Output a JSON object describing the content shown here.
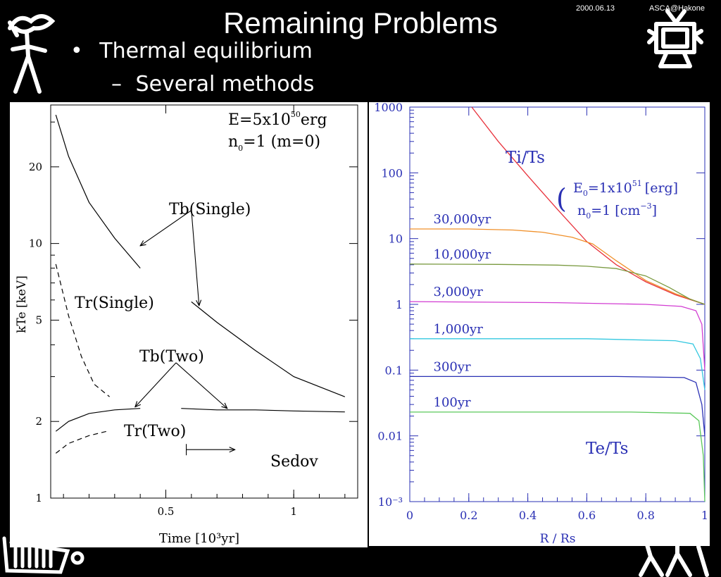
{
  "slide": {
    "title": "Remaining Problems",
    "date": "2000.06.13",
    "venue": "ASCA@Hakone",
    "bullets": [
      {
        "marker": "•",
        "text": "Thermal equilibrium"
      },
      {
        "marker": "–",
        "text": "Several methods"
      }
    ]
  },
  "chart_data": [
    {
      "type": "line",
      "xlabel": "Time [10³yr]",
      "ylabel": "kTe [keV]",
      "xlim": [
        0.05,
        1.25
      ],
      "ylim": [
        1,
        35
      ],
      "yscale": "log",
      "xticks": [
        "0.5",
        "1"
      ],
      "yticks": [
        "1",
        "2",
        "5",
        "10",
        "20"
      ],
      "annotations": {
        "energy": "E=5x10",
        "energy_exp": "50",
        "energy_unit": "erg",
        "density": "n",
        "density_sub": "0",
        "density_rest": "=1 (m=0)",
        "tb_single": "Tb(Single)",
        "tr_single": "Tr(Single)",
        "tb_two": "Tb(Two)",
        "tr_two": "Tr(Two)",
        "sedov": "Sedov"
      },
      "series": [
        {
          "name": "Tb(Single)",
          "style": "solid",
          "segments": [
            [
              [
                0.07,
                32
              ],
              [
                0.12,
                22
              ],
              [
                0.2,
                14.5
              ],
              [
                0.3,
                10.5
              ],
              [
                0.4,
                8
              ]
            ],
            [
              [
                0.6,
                5.9
              ],
              [
                0.7,
                4.9
              ],
              [
                0.85,
                3.8
              ],
              [
                1.0,
                3.0
              ],
              [
                1.2,
                2.5
              ]
            ]
          ]
        },
        {
          "name": "Tr(Single)",
          "style": "dashed",
          "segments": [
            [
              [
                0.07,
                8.3
              ],
              [
                0.12,
                5.2
              ],
              [
                0.17,
                3.6
              ],
              [
                0.22,
                2.8
              ],
              [
                0.28,
                2.5
              ]
            ]
          ]
        },
        {
          "name": "Tb(Two)",
          "style": "solid",
          "segments": [
            [
              [
                0.07,
                1.83
              ],
              [
                0.12,
                2.0
              ],
              [
                0.2,
                2.15
              ],
              [
                0.3,
                2.22
              ],
              [
                0.4,
                2.25
              ]
            ],
            [
              [
                0.56,
                2.25
              ],
              [
                0.7,
                2.22
              ],
              [
                0.85,
                2.22
              ],
              [
                1.0,
                2.2
              ],
              [
                1.2,
                2.18
              ]
            ]
          ]
        },
        {
          "name": "Tr(Two)",
          "style": "dashed",
          "segments": [
            [
              [
                0.07,
                1.5
              ],
              [
                0.12,
                1.64
              ],
              [
                0.2,
                1.76
              ],
              [
                0.27,
                1.83
              ]
            ]
          ]
        }
      ],
      "arrows": [
        {
          "from": [
            0.6,
            13.5
          ],
          "to": [
            0.4,
            9.8
          ]
        },
        {
          "from": [
            0.6,
            13.5
          ],
          "to": [
            0.63,
            5.7
          ]
        },
        {
          "from": [
            0.54,
            3.4
          ],
          "to": [
            0.38,
            2.28
          ]
        },
        {
          "from": [
            0.54,
            3.4
          ],
          "to": [
            0.74,
            2.25
          ]
        },
        {
          "from": [
            0.58,
            1.55
          ],
          "to": [
            0.77,
            1.55
          ]
        }
      ]
    },
    {
      "type": "line",
      "xlabel": "R / Rs",
      "ylabel": "",
      "xlim": [
        0,
        1
      ],
      "ylim": [
        0.001,
        1000
      ],
      "yscale": "log",
      "xticks": [
        "0",
        "0.2",
        "0.4",
        "0.6",
        "0.8",
        "1"
      ],
      "yticks": [
        "10⁻³",
        "0.01",
        "0.1",
        "1",
        "10",
        "100",
        "1000"
      ],
      "annotations": {
        "ti_ts": "Ti/Ts",
        "te_ts": "Te/Ts",
        "e0": "E",
        "e0_sub": "0",
        "e0_rest": "=1x10",
        "e0_exp": "51",
        "e0_unit": "[erg]",
        "n0": "n",
        "n0_sub": "0",
        "n0_rest": "=1 [cm",
        "n0_exp": "−3",
        "n0_close": "]",
        "paren": "("
      },
      "series": [
        {
          "name": "Ti/Ts",
          "color": "#e8323c",
          "points": [
            [
              0.21,
              1000
            ],
            [
              0.3,
              300
            ],
            [
              0.4,
              90
            ],
            [
              0.5,
              28
            ],
            [
              0.6,
              9
            ],
            [
              0.7,
              4
            ],
            [
              0.8,
              2.2
            ],
            [
              0.9,
              1.4
            ],
            [
              1.0,
              1.0
            ]
          ]
        },
        {
          "name": "30,000yr",
          "color": "#f0902a",
          "points": [
            [
              0,
              14
            ],
            [
              0.2,
              14
            ],
            [
              0.35,
              13.5
            ],
            [
              0.45,
              12.5
            ],
            [
              0.55,
              10.5
            ],
            [
              0.62,
              8.3
            ],
            [
              0.7,
              4.6
            ],
            [
              0.8,
              2.3
            ],
            [
              0.9,
              1.45
            ],
            [
              1.0,
              1.0
            ]
          ]
        },
        {
          "name": "10,000yr",
          "color": "#7a9a40",
          "points": [
            [
              0,
              4.1
            ],
            [
              0.3,
              4.05
            ],
            [
              0.5,
              3.95
            ],
            [
              0.6,
              3.8
            ],
            [
              0.7,
              3.5
            ],
            [
              0.8,
              2.7
            ],
            [
              0.88,
              1.8
            ],
            [
              0.95,
              1.2
            ],
            [
              1.0,
              1.0
            ]
          ]
        },
        {
          "name": "3,000yr",
          "color": "#d23cd2",
          "points": [
            [
              0,
              1.1
            ],
            [
              0.5,
              1.06
            ],
            [
              0.8,
              1.0
            ],
            [
              0.92,
              0.93
            ],
            [
              0.97,
              0.8
            ],
            [
              0.99,
              0.5
            ],
            [
              1.0,
              0.1
            ]
          ]
        },
        {
          "name": "1,000yr",
          "color": "#34c8e0",
          "points": [
            [
              0,
              0.3
            ],
            [
              0.6,
              0.3
            ],
            [
              0.9,
              0.28
            ],
            [
              0.96,
              0.25
            ],
            [
              0.985,
              0.15
            ],
            [
              1.0,
              0.05
            ]
          ]
        },
        {
          "name": "300yr",
          "color": "#2a30b4",
          "points": [
            [
              0,
              0.08
            ],
            [
              0.7,
              0.08
            ],
            [
              0.93,
              0.077
            ],
            [
              0.97,
              0.065
            ],
            [
              0.99,
              0.03
            ],
            [
              1.0,
              0.01
            ]
          ]
        },
        {
          "name": "100yr",
          "color": "#5ac85a",
          "points": [
            [
              0,
              0.023
            ],
            [
              0.75,
              0.023
            ],
            [
              0.95,
              0.022
            ],
            [
              0.98,
              0.017
            ],
            [
              0.995,
              0.005
            ],
            [
              1.0,
              0.001
            ]
          ]
        }
      ],
      "curve_labels": [
        {
          "series": "30,000yr",
          "text": "30,000yr"
        },
        {
          "series": "10,000yr",
          "text": "10,000yr"
        },
        {
          "series": "3,000yr",
          "text": "3,000yr"
        },
        {
          "series": "1,000yr",
          "text": "1,000yr"
        },
        {
          "series": "300yr",
          "text": "300yr"
        },
        {
          "series": "100yr",
          "text": "100yr"
        }
      ],
      "label_color": "#2a30b4"
    }
  ]
}
